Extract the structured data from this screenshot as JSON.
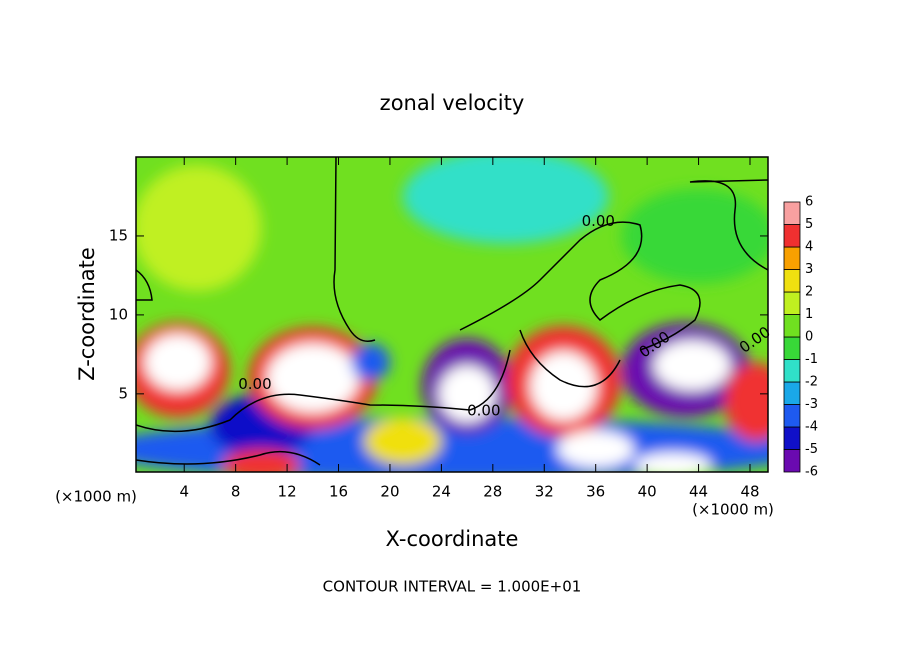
{
  "chart_data": {
    "type": "contour",
    "title": "zonal velocity",
    "xlabel": "X-coordinate",
    "ylabel": "Z-coordinate",
    "x_unit": "(×1000 m)",
    "y_unit": "(×1000 m)",
    "footnote": "CONTOUR INTERVAL = 1.000E+01",
    "xlim": [
      0.25,
      49.4
    ],
    "ylim": [
      0.05,
      20
    ],
    "xticks": [
      4,
      8,
      12,
      16,
      20,
      24,
      28,
      32,
      36,
      40,
      44,
      48
    ],
    "yticks": [
      5,
      10,
      15
    ],
    "background_value": 0.5,
    "colorbar": {
      "ticks": [
        -6,
        -5,
        -4,
        -3,
        -2,
        -1,
        0,
        1,
        2,
        3,
        4,
        5,
        6
      ],
      "colors": [
        "#6a0ab0",
        "#1010c8",
        "#1e5af0",
        "#1aa8e8",
        "#30e0c8",
        "#38d838",
        "#70e020",
        "#c0f020",
        "#f0e010",
        "#f8a000",
        "#f03030",
        "#f8a0a0"
      ],
      "over_color": "#ffffff",
      "under_color": "#ffffff"
    },
    "features": [
      {
        "x": 5,
        "z": 15.5,
        "rx": 5,
        "rz": 4,
        "value": 2
      },
      {
        "x": 29,
        "z": 17.5,
        "rx": 8,
        "rz": 3,
        "value": -1.5
      },
      {
        "x": 44,
        "z": 15,
        "rx": 6,
        "rz": 3,
        "value": -0.5
      },
      {
        "x": 25,
        "z": 1.5,
        "rx": 28,
        "rz": 2,
        "value": -3.5
      },
      {
        "x": 3.5,
        "z": 6.5,
        "rx": 4,
        "rz": 3,
        "value": 4.5
      },
      {
        "x": 3.5,
        "z": 7,
        "rx": 2.6,
        "rz": 1.8,
        "value": 7
      },
      {
        "x": 10,
        "z": 3,
        "rx": 4,
        "rz": 2,
        "value": -4.5
      },
      {
        "x": 14,
        "z": 6,
        "rx": 5,
        "rz": 3.2,
        "value": 4.5
      },
      {
        "x": 14,
        "z": 6,
        "rx": 3.6,
        "rz": 2.2,
        "value": 7
      },
      {
        "x": 18.5,
        "z": 7,
        "rx": 1.5,
        "rz": 1.2,
        "value": -3
      },
      {
        "x": 26,
        "z": 5.5,
        "rx": 3.5,
        "rz": 3,
        "value": -5
      },
      {
        "x": 26,
        "z": 5,
        "rx": 2.2,
        "rz": 1.8,
        "value": 7
      },
      {
        "x": 33.5,
        "z": 5.8,
        "rx": 4.5,
        "rz": 3.5,
        "value": 4.5
      },
      {
        "x": 33.5,
        "z": 5.5,
        "rx": 2.6,
        "rz": 2.2,
        "value": 7
      },
      {
        "x": 43,
        "z": 6.5,
        "rx": 5,
        "rz": 3,
        "value": -5
      },
      {
        "x": 43.5,
        "z": 6.8,
        "rx": 3,
        "rz": 1.6,
        "value": 7
      },
      {
        "x": 48.5,
        "z": 4.5,
        "rx": 2.5,
        "rz": 2.5,
        "value": 4.5
      },
      {
        "x": 10,
        "z": 0.5,
        "rx": 3,
        "rz": 1,
        "value": 4.5
      },
      {
        "x": 21,
        "z": 2,
        "rx": 3,
        "rz": 1.5,
        "value": 3
      },
      {
        "x": 36,
        "z": 1.5,
        "rx": 3,
        "rz": 1.2,
        "value": 7
      },
      {
        "x": 42,
        "z": 0.5,
        "rx": 3,
        "rz": 0.8,
        "value": 7
      }
    ],
    "contour_labels": [
      {
        "text": "0.00",
        "x": 36.2,
        "z": 15.9
      },
      {
        "text": "0.00",
        "x": 9.5,
        "z": 5.6
      },
      {
        "text": "0.00",
        "x": 27.3,
        "z": 3.9
      },
      {
        "text": "0.00",
        "x": 40.6,
        "z": 8.1
      },
      {
        "text": "0.00",
        "x": 48.4,
        "z": 8.4
      }
    ]
  }
}
